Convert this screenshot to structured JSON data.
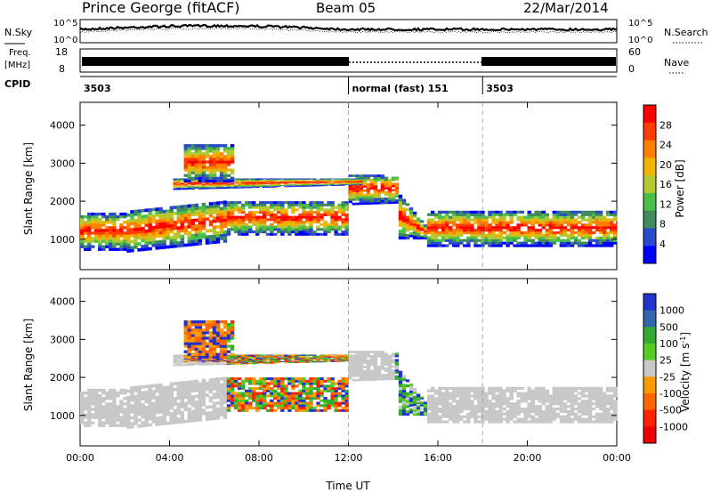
{
  "header": {
    "site": "Prince George (fitACF)",
    "beam": "Beam 05",
    "date": "22/Mar/2014"
  },
  "sky_panel": {
    "left_label": "N.Sky",
    "right_label": "N.Search",
    "tick_top": "10^5",
    "tick_bottom": "10^0",
    "right_tick_top": "10^5",
    "right_tick_bottom": "10^0"
  },
  "freq_panel": {
    "left_label_1": "Freq.",
    "left_label_2": "[MHz]",
    "tick_top": "18",
    "tick_bottom": "8",
    "right_label": "Nave",
    "right_tick_top": "60",
    "right_tick_bottom": "0"
  },
  "cpid_panel": {
    "label": "CPID",
    "segments": [
      {
        "label": "3503",
        "start": 0,
        "end": 12
      },
      {
        "label": "normal (fast) 151",
        "start": 12,
        "end": 18
      },
      {
        "label": "3503",
        "start": 18,
        "end": 24
      }
    ]
  },
  "chart_data": [
    {
      "type": "heatmap",
      "name": "power",
      "ylabel": "Slant Range [km]",
      "yticks": [
        "1000",
        "2000",
        "3000",
        "4000"
      ],
      "ylim": [
        200,
        4600
      ],
      "colorbar_label": "Power [dB]",
      "colorbar_ticks": [
        "4",
        "8",
        "12",
        "16",
        "20",
        "24",
        "28"
      ],
      "colorbar_colors": [
        "#0000ff",
        "#2c49c9",
        "#3f8b5c",
        "#49c049",
        "#b4c832",
        "#f0b400",
        "#ff7f00",
        "#ff3c00",
        "#ff0000"
      ]
    },
    {
      "type": "heatmap",
      "name": "velocity",
      "ylabel": "Slant Range [km]",
      "yticks": [
        "1000",
        "2000",
        "3000",
        "4000"
      ],
      "ylim": [
        200,
        4600
      ],
      "colorbar_label": "Velocity [m s",
      "colorbar_label_sup": "-1",
      "colorbar_label_end": "]",
      "colorbar_ticks": [
        "1000",
        "500",
        "100",
        "25",
        "-25",
        "-100",
        "-500",
        "-1000"
      ],
      "colorbar_colors": [
        "#2233cc",
        "#3366aa",
        "#33aa33",
        "#55cc22",
        "#c8c8c8",
        "#ff9900",
        "#ff6600",
        "#ff2200",
        "#ee0000"
      ]
    }
  ],
  "xaxis": {
    "label": "Time UT",
    "ticks": [
      "00:00",
      "04:00",
      "08:00",
      "12:00",
      "16:00",
      "20:00",
      "00:00"
    ],
    "hours": [
      0,
      4,
      8,
      12,
      16,
      20,
      24
    ],
    "divider_hours": [
      12,
      18
    ]
  }
}
